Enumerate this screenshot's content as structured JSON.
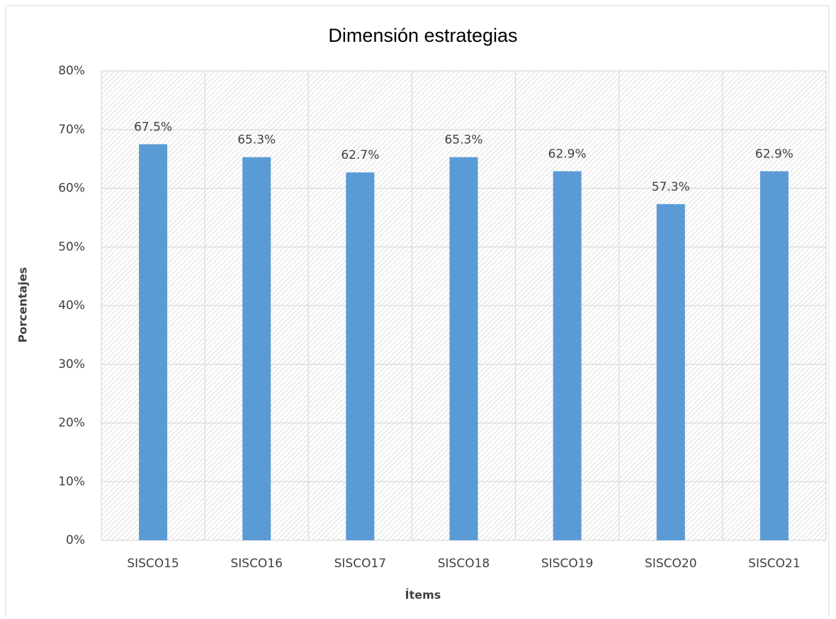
{
  "chart_data": {
    "type": "bar",
    "title": "Dimensión estrategias",
    "x_label": "Ítems",
    "y_label": "Porcentajes",
    "categories": [
      "SISCO15",
      "SISCO16",
      "SISCO17",
      "SISCO18",
      "SISCO19",
      "SISCO20",
      "SISCO21"
    ],
    "values": [
      67.5,
      65.3,
      62.7,
      65.3,
      62.9,
      57.3,
      62.9
    ],
    "value_labels": [
      "67.5%",
      "65.3%",
      "62.7%",
      "65.3%",
      "62.9%",
      "57.3%",
      "62.9%"
    ],
    "color": "#5b9bd5",
    "ylim": [
      0,
      80
    ],
    "yticks": [
      {
        "value": 0,
        "label": "0%"
      },
      {
        "value": 10,
        "label": "10%"
      },
      {
        "value": 20,
        "label": "20%"
      },
      {
        "value": 30,
        "label": "30%"
      },
      {
        "value": 40,
        "label": "40%"
      },
      {
        "value": 50,
        "label": "50%"
      },
      {
        "value": 60,
        "label": "60%"
      },
      {
        "value": 70,
        "label": "70%"
      },
      {
        "value": 80,
        "label": "80%"
      }
    ],
    "grid": true
  }
}
